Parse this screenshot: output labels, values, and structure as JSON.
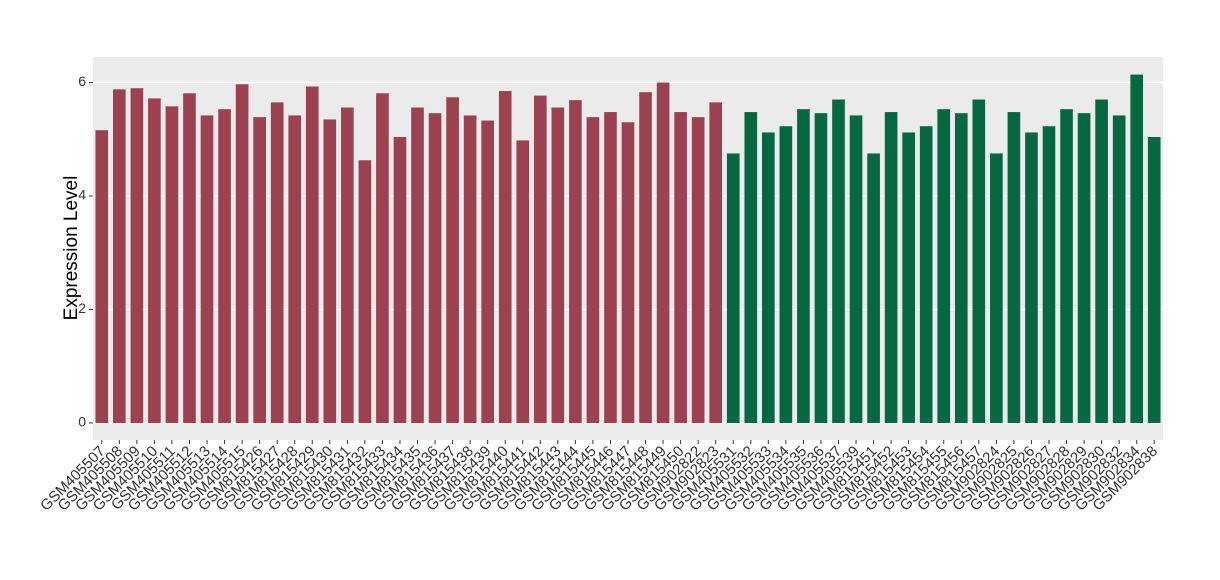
{
  "chart_data": {
    "type": "bar",
    "y_label": "Expression Level",
    "categories": [
      "GSM405507",
      "GSM405508",
      "GSM405509",
      "GSM405510",
      "GSM405511",
      "GSM405512",
      "GSM405513",
      "GSM405514",
      "GSM405515",
      "GSM815426",
      "GSM815427",
      "GSM815428",
      "GSM815429",
      "GSM815430",
      "GSM815431",
      "GSM815432",
      "GSM815433",
      "GSM815434",
      "GSM815435",
      "GSM815436",
      "GSM815437",
      "GSM815438",
      "GSM815439",
      "GSM815440",
      "GSM815441",
      "GSM815442",
      "GSM815443",
      "GSM815444",
      "GSM815445",
      "GSM815446",
      "GSM815447",
      "GSM815448",
      "GSM815449",
      "GSM815450",
      "GSM902822",
      "GSM902823",
      "GSM405531",
      "GSM405532",
      "GSM405533",
      "GSM405534",
      "GSM405535",
      "GSM405536",
      "GSM405537",
      "GSM405539",
      "GSM815451",
      "GSM815452",
      "GSM815453",
      "GSM815454",
      "GSM815455",
      "GSM815456",
      "GSM815457",
      "GSM902824",
      "GSM902825",
      "GSM902826",
      "GSM902827",
      "GSM902828",
      "GSM902829",
      "GSM902830",
      "GSM902832",
      "GSM902834",
      "GSM902838"
    ],
    "series": [
      {
        "color": "#9b4150",
        "values": [
          5.16,
          5.88,
          5.9,
          5.72,
          5.58,
          5.81,
          5.42,
          5.53,
          5.97,
          5.39,
          5.65,
          5.42,
          5.93,
          5.35,
          5.56,
          4.63,
          5.81,
          5.04,
          5.56,
          5.46,
          5.74,
          5.42,
          5.33,
          5.85,
          4.98,
          5.77,
          5.56,
          5.69,
          5.39,
          5.48,
          5.3,
          5.83,
          6.0,
          5.48,
          5.39,
          5.65,
          null,
          null,
          null,
          null,
          null,
          null,
          null,
          null,
          null,
          null,
          null,
          null,
          null,
          null,
          null,
          null,
          null,
          null,
          null,
          null,
          null,
          null,
          null,
          null,
          null
        ]
      },
      {
        "color": "#066843",
        "values": [
          null,
          null,
          null,
          null,
          null,
          null,
          null,
          null,
          null,
          null,
          null,
          null,
          null,
          null,
          null,
          null,
          null,
          null,
          null,
          null,
          null,
          null,
          null,
          null,
          null,
          null,
          null,
          null,
          null,
          null,
          null,
          null,
          null,
          null,
          null,
          null,
          4.75,
          5.48,
          5.12,
          5.23,
          5.53,
          5.46,
          5.7,
          5.42,
          4.75,
          5.48,
          5.12,
          5.23,
          5.53,
          5.46,
          5.7,
          4.75,
          5.48,
          5.12,
          5.23,
          5.53,
          5.46,
          5.7,
          5.42,
          6.14,
          5.04
        ]
      }
    ],
    "ylim": [
      -0.3,
      6.45
    ],
    "yticks": [
      0,
      2,
      4,
      6
    ],
    "grid": true
  }
}
